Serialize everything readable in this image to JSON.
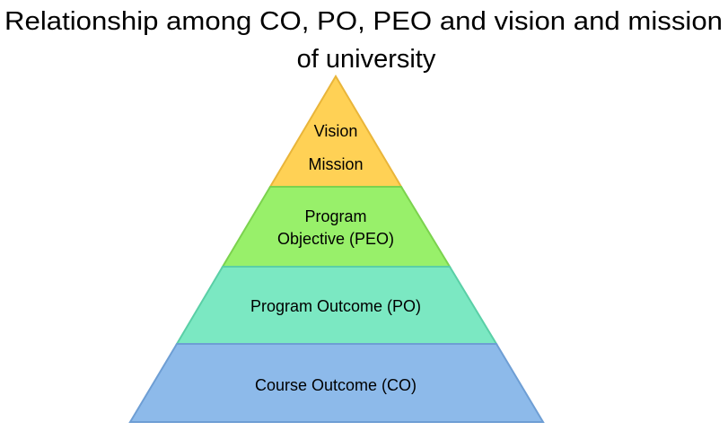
{
  "title": {
    "line1": "Relationship among CO, PO, PEO and vision and mission",
    "line2": "of university"
  },
  "pyramid": {
    "levels": [
      {
        "lines": [
          "Vision",
          "Mission"
        ],
        "color": "#FFD155",
        "edge": "#E9B53A"
      },
      {
        "lines": [
          "Program",
          "Objective (PEO)"
        ],
        "color": "#98F06A",
        "edge": "#7BD24E"
      },
      {
        "lines": [
          "Program Outcome (PO)"
        ],
        "color": "#7BE8C2",
        "edge": "#5ACFA6"
      },
      {
        "lines": [
          "Course Outcome (CO)"
        ],
        "color": "#8DBAEA",
        "edge": "#6E9ED4"
      }
    ]
  }
}
